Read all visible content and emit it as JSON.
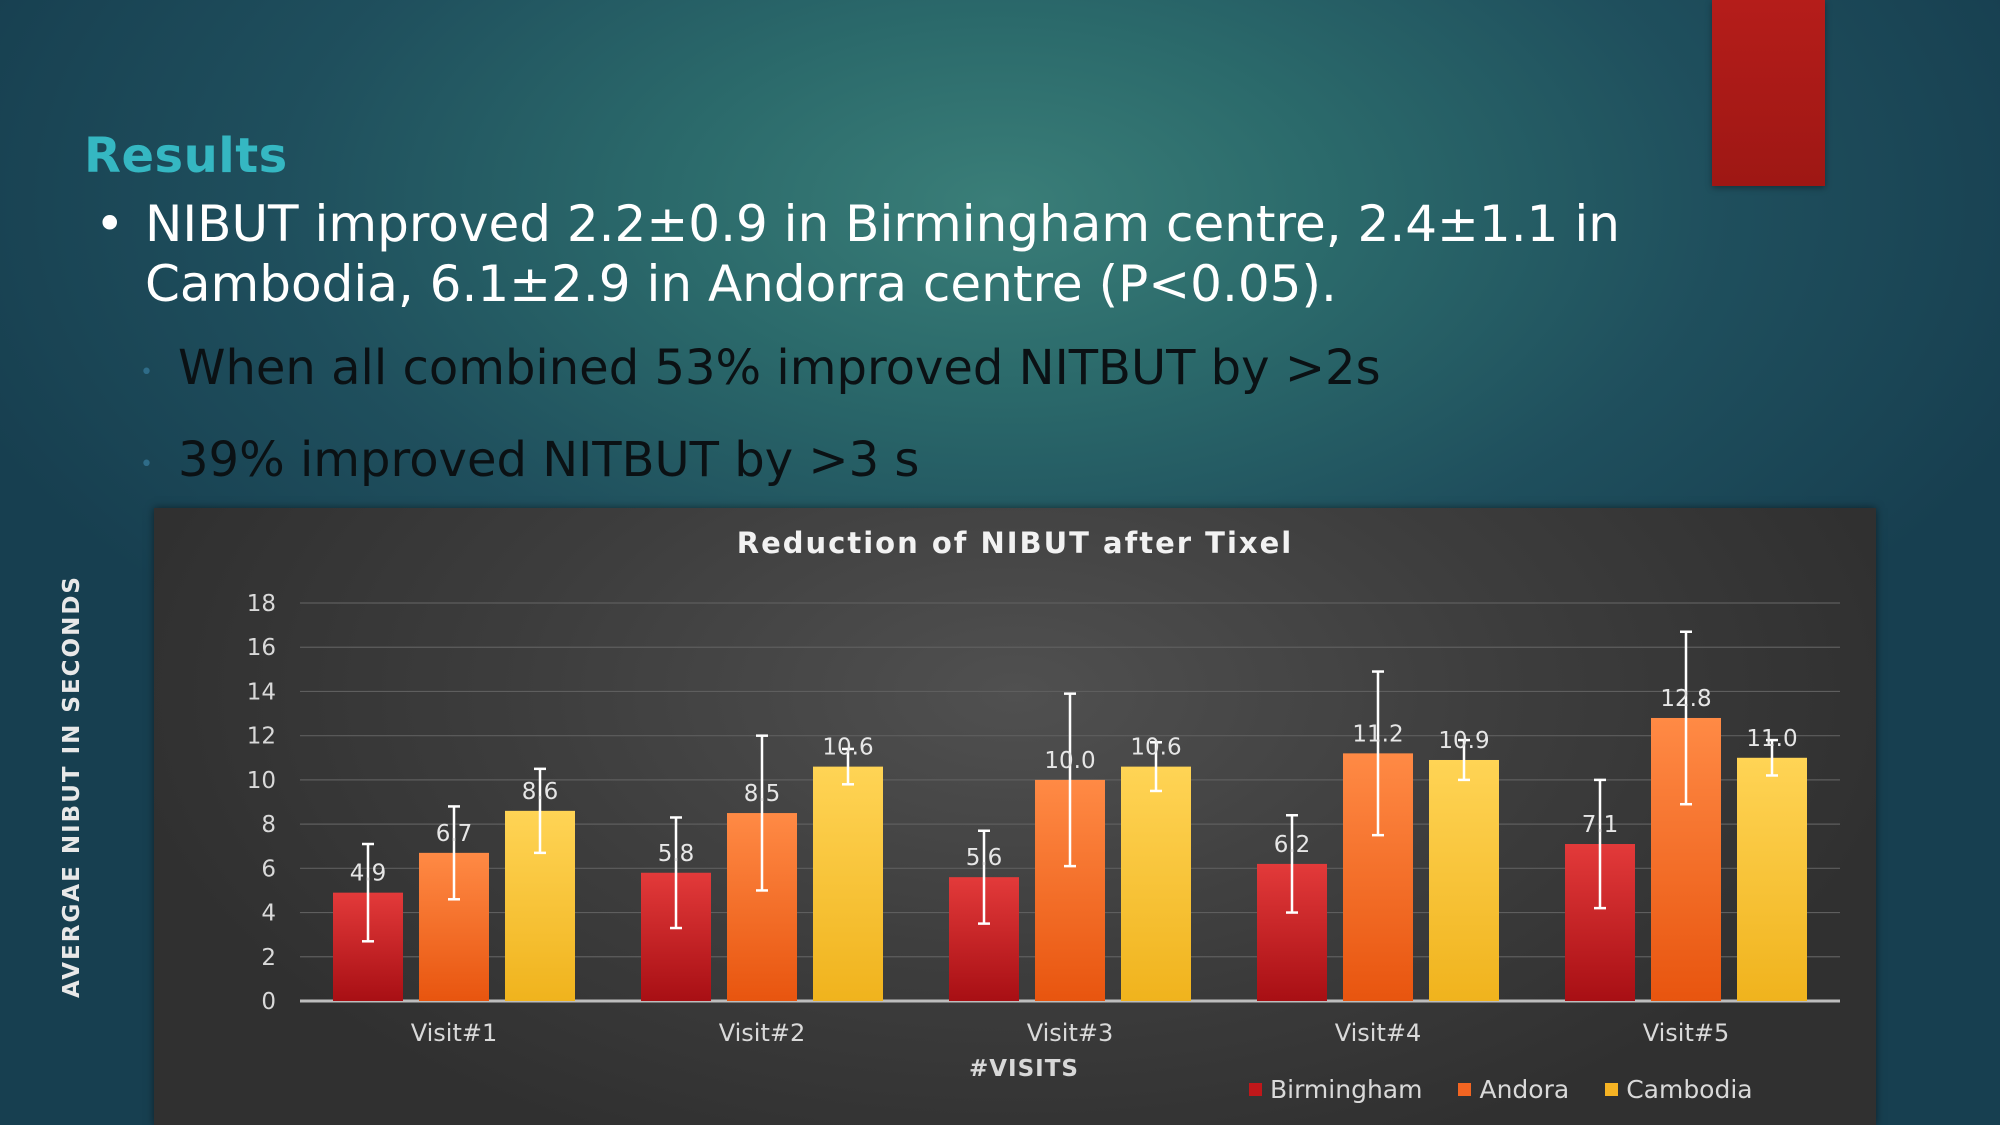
{
  "slide": {
    "title": "Results",
    "bullet_symbol": "•",
    "main_bullet": "NIBUT improved 2.2±0.9 in Birmingham centre, 2.4±1.1 in Cambodia, 6.1±2.9 in Andorra centre (P<0.05).",
    "sub_bullet_symbol": "•",
    "sub_bullets": [
      "When all combined 53% improved NITBUT by >2s",
      "39% improved NITBUT by >3 s"
    ],
    "accent_color": "#35b7c2",
    "corner_bar_color": "#a91a17"
  },
  "chart_data": {
    "type": "bar",
    "title": "Reduction of NIBUT after Tixel",
    "xlabel": "#VISITS",
    "ylabel": "AVERGAE NIBUT IN SECONDS",
    "ylim": [
      0,
      18
    ],
    "yticks": [
      "0",
      "2",
      "4",
      "6",
      "8",
      "10",
      "12",
      "14",
      "16",
      "18"
    ],
    "grid": true,
    "legend_position": "bottom-right",
    "categories": [
      "Visit#1",
      "Visit#2",
      "Visit#3",
      "Visit#4",
      "Visit#5"
    ],
    "series": [
      {
        "name": "Birmingham",
        "color": "#c0171a",
        "values": [
          4.9,
          5.8,
          5.6,
          6.2,
          7.1
        ],
        "labels": [
          "4.9",
          "5.8",
          "5.6",
          "6.2",
          "7.1"
        ],
        "error": [
          2.2,
          2.5,
          2.1,
          2.2,
          2.9
        ]
      },
      {
        "name": "Andora",
        "color": "#f26522",
        "values": [
          6.7,
          8.5,
          10.0,
          11.2,
          12.8
        ],
        "labels": [
          "6.7",
          "8.5",
          "10.0",
          "11.2",
          "12.8"
        ],
        "error": [
          2.1,
          3.5,
          3.9,
          3.7,
          3.9
        ]
      },
      {
        "name": "Cambodia",
        "color": "#f5b324",
        "values": [
          8.6,
          10.6,
          10.6,
          10.9,
          11.0
        ],
        "labels": [
          "8.6",
          "10.6",
          "10.6",
          "10.9",
          "11.0"
        ],
        "error": [
          1.9,
          0.8,
          1.1,
          0.9,
          0.8
        ]
      }
    ]
  }
}
